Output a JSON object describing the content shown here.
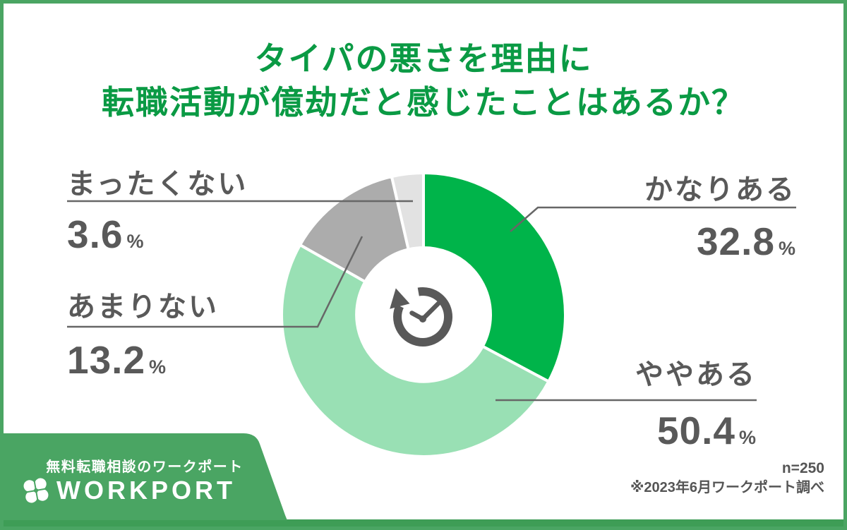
{
  "title": {
    "line1": "タイパの悪さを理由に",
    "line2": "転職活動が億劫だと感じたことはあるか？"
  },
  "chart_data": {
    "type": "pie",
    "subtype": "donut",
    "title": "タイパの悪さを理由に転職活動が億劫だと感じたことはあるか？",
    "categories": [
      "かなりある",
      "ややある",
      "あまりない",
      "まったくない"
    ],
    "values": [
      32.8,
      50.4,
      13.2,
      3.6
    ],
    "unit": "%",
    "colors": [
      "#00b44a",
      "#99e0b4",
      "#acacac",
      "#e2e2e2"
    ],
    "start_angle_deg_from_12_clockwise": 0,
    "legend_position": "callouts-around-chart",
    "center_icon": "clock-history-icon",
    "sample_size": "n=250",
    "source": "※2023年6月ワークポート調べ"
  },
  "callouts": [
    {
      "label": "かなりある",
      "value": "32.8",
      "unit": "%"
    },
    {
      "label": "ややある",
      "value": "50.4",
      "unit": "%"
    },
    {
      "label": "あまりない",
      "value": "13.2",
      "unit": "%"
    },
    {
      "label": "まったくない",
      "value": "3.6",
      "unit": "%"
    }
  ],
  "footer": {
    "tagline": "無料転職相談のワークポート",
    "brand": "WORKPORT"
  },
  "notes": {
    "sample": "n=250",
    "source": "※2023年6月ワークポート調べ"
  },
  "colors": {
    "frame_green": "#4aa563",
    "bottom_bar_green": "#3e9d56",
    "title_green": "#0a9a44",
    "text_gray": "#595959",
    "leader_line_gray": "#676767"
  }
}
